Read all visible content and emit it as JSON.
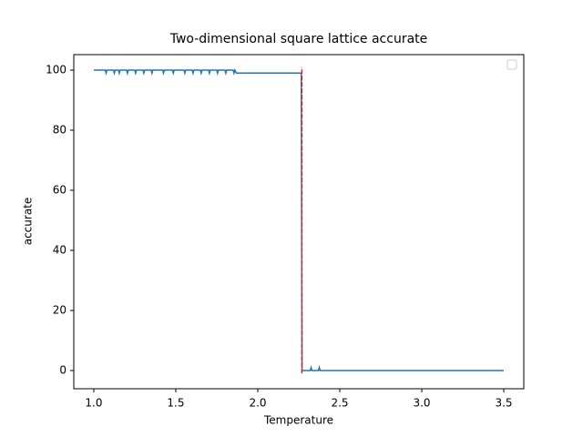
{
  "chart_data": {
    "type": "line",
    "title": "Two-dimensional square lattice accurate",
    "x_label": "Temperature",
    "y_label": "accurate",
    "x": [
      1.0,
      1.07,
      1.075,
      1.08,
      1.12,
      1.125,
      1.13,
      1.15,
      1.155,
      1.16,
      1.2,
      1.205,
      1.21,
      1.25,
      1.255,
      1.26,
      1.3,
      1.305,
      1.31,
      1.35,
      1.355,
      1.36,
      1.42,
      1.425,
      1.43,
      1.48,
      1.485,
      1.49,
      1.55,
      1.555,
      1.56,
      1.6,
      1.605,
      1.61,
      1.65,
      1.655,
      1.66,
      1.7,
      1.705,
      1.71,
      1.75,
      1.755,
      1.76,
      1.8,
      1.805,
      1.81,
      1.85,
      1.855,
      1.86,
      1.87,
      2.265,
      2.27,
      2.32,
      2.325,
      2.33,
      2.37,
      2.375,
      2.38,
      3.5
    ],
    "series": [
      {
        "color": "#1f77b4",
        "values": [
          100,
          100,
          99,
          100,
          100,
          99,
          100,
          100,
          99,
          100,
          100,
          99,
          100,
          100,
          99,
          100,
          100,
          99,
          100,
          100,
          99,
          100,
          100,
          99,
          100,
          100,
          99,
          100,
          100,
          99,
          100,
          100,
          99,
          100,
          100,
          99,
          100,
          100,
          99,
          100,
          100,
          99,
          100,
          100,
          99,
          100,
          100,
          99,
          100,
          99,
          99,
          0,
          0,
          1,
          0,
          0,
          1,
          0,
          0
        ]
      }
    ],
    "vline": {
      "x": 2.269,
      "ymin": -1,
      "ymax": 101,
      "color": "#d62728"
    },
    "xlim": [
      0.878,
      3.622
    ],
    "ylim": [
      -6.06,
      105.15
    ],
    "xticks": [
      {
        "value": 1.0,
        "label": "1.0"
      },
      1.5,
      {
        "value": 2.0,
        "label": "2.0"
      },
      2.5,
      {
        "value": 3.0,
        "label": "3.0"
      },
      3.5
    ],
    "yticks": [
      0,
      20,
      40,
      60,
      80,
      100
    ],
    "legend": "upper right"
  }
}
